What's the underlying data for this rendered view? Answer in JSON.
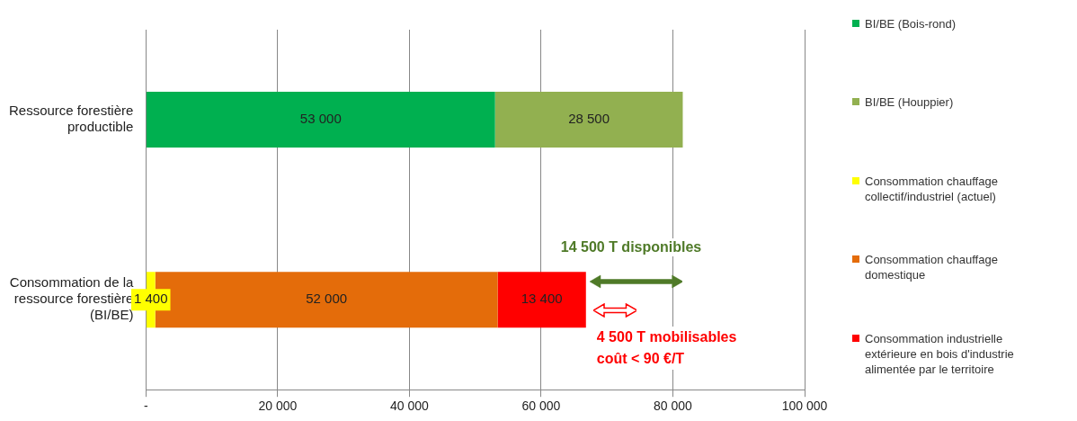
{
  "chart_data": {
    "type": "bar",
    "orientation": "horizontal",
    "stacked": true,
    "categories": [
      "Ressource forestière productible",
      "Consommation de la ressource forestière (BI/BE)"
    ],
    "series": [
      {
        "name": "BI/BE (Bois-rond)",
        "color": "#00b050",
        "values": [
          53000,
          null
        ],
        "value_labels": [
          "53 000",
          null
        ]
      },
      {
        "name": "BI/BE (Houppier)",
        "color": "#92b050",
        "values": [
          28500,
          null
        ],
        "value_labels": [
          "28 500",
          null
        ]
      },
      {
        "name": "Consommation chauffage collectif/industriel (actuel)",
        "color": "#ffff00",
        "values": [
          null,
          1400
        ],
        "value_labels": [
          null,
          "1 400"
        ]
      },
      {
        "name": "Consommation chauffage domestique",
        "color": "#e46c0a",
        "values": [
          null,
          52000
        ],
        "value_labels": [
          null,
          "52 000"
        ]
      },
      {
        "name": "Consommation industrielle extérieure en bois d'industrie alimentée par le territoire",
        "color": "#ff0000",
        "values": [
          null,
          13400
        ],
        "value_labels": [
          null,
          "13 400"
        ]
      }
    ],
    "xlim": [
      0,
      100000
    ],
    "xticks": [
      {
        "value": 0,
        "label": "-"
      },
      {
        "value": 20000,
        "label": "20 000"
      },
      {
        "value": 40000,
        "label": "40 000"
      },
      {
        "value": 60000,
        "label": "60 000"
      },
      {
        "value": 80000,
        "label": "80 000"
      },
      {
        "value": 100000,
        "label": "100 000"
      }
    ],
    "grid": "x",
    "legend": "right",
    "annotations": [
      "14 500 T disponibles",
      "4 500 T mobilisables coût < 90 €/T"
    ]
  }
}
